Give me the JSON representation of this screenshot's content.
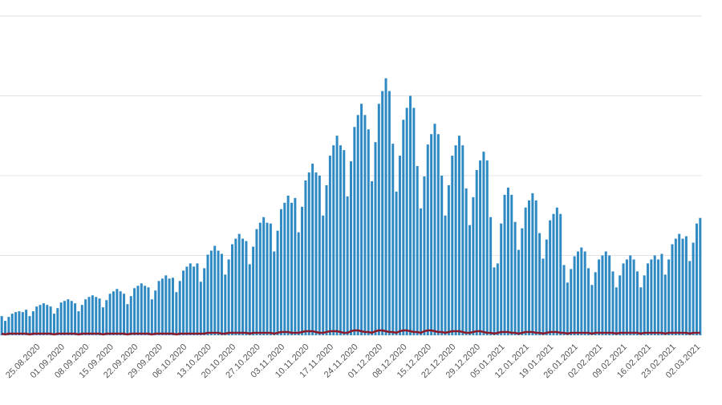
{
  "chart_data": {
    "type": "bar",
    "categories": [
      null,
      null,
      null,
      null,
      null,
      null,
      null,
      null,
      null,
      "25.08.2020",
      null,
      null,
      null,
      null,
      null,
      null,
      "01.09.2020",
      null,
      null,
      null,
      null,
      null,
      null,
      "08.09.2020",
      null,
      null,
      null,
      null,
      null,
      null,
      "15.09.2020",
      null,
      null,
      null,
      null,
      null,
      null,
      "22.09.2020",
      null,
      null,
      null,
      null,
      null,
      null,
      "29.09.2020",
      null,
      null,
      null,
      null,
      null,
      null,
      "06.10.2020",
      null,
      null,
      null,
      null,
      null,
      null,
      "13.10.2020",
      null,
      null,
      null,
      null,
      null,
      null,
      "20.10.2020",
      null,
      null,
      null,
      null,
      null,
      null,
      "27.10.2020",
      null,
      null,
      null,
      null,
      null,
      null,
      "03.11.2020",
      null,
      null,
      null,
      null,
      null,
      null,
      "10.11.2020",
      null,
      null,
      null,
      null,
      null,
      null,
      "17.11.2020",
      null,
      null,
      null,
      null,
      null,
      null,
      "24.11.2020",
      null,
      null,
      null,
      null,
      null,
      null,
      "01.12.2020",
      null,
      null,
      null,
      null,
      null,
      null,
      "08.12.2020",
      null,
      null,
      null,
      null,
      null,
      null,
      "15.12.2020",
      null,
      null,
      null,
      null,
      null,
      null,
      "22.12.2020",
      null,
      null,
      null,
      null,
      null,
      null,
      "29.12.2020",
      null,
      null,
      null,
      null,
      null,
      null,
      "05.01.2021",
      null,
      null,
      null,
      null,
      null,
      null,
      "12.01.2021",
      null,
      null,
      null,
      null,
      null,
      null,
      "19.01.2021",
      null,
      null,
      null,
      null,
      null,
      null,
      "26.01.2021",
      null,
      null,
      null,
      null,
      null,
      null,
      "02.02.2021",
      null,
      null,
      null,
      null,
      null,
      null,
      "09.02.2021",
      null,
      null,
      null,
      null,
      null,
      null,
      "16.02.2021",
      null,
      null,
      null,
      null,
      null,
      null,
      "23.02.2021",
      null,
      null,
      null,
      null,
      null,
      null,
      "02.03.2021",
      null,
      null
    ],
    "series": [
      {
        "type": "bar",
        "color": "#2f8ac4",
        "values": [
          0.24,
          0.18,
          0.23,
          0.27,
          0.29,
          0.3,
          0.29,
          0.32,
          0.24,
          0.3,
          0.36,
          0.38,
          0.4,
          0.38,
          0.36,
          0.27,
          0.34,
          0.41,
          0.43,
          0.45,
          0.43,
          0.4,
          0.3,
          0.38,
          0.45,
          0.48,
          0.5,
          0.48,
          0.46,
          0.35,
          0.44,
          0.52,
          0.55,
          0.58,
          0.55,
          0.52,
          0.39,
          0.49,
          0.59,
          0.62,
          0.65,
          0.62,
          0.6,
          0.45,
          0.56,
          0.68,
          0.71,
          0.75,
          0.71,
          0.72,
          0.54,
          0.68,
          0.81,
          0.86,
          0.9,
          0.86,
          0.9,
          0.67,
          0.84,
          1.01,
          1.06,
          1.12,
          1.06,
          1.02,
          0.76,
          0.95,
          1.14,
          1.21,
          1.27,
          1.21,
          1.18,
          0.89,
          1.11,
          1.33,
          1.41,
          1.48,
          1.41,
          1.4,
          1.05,
          1.31,
          1.58,
          1.66,
          1.75,
          1.66,
          1.72,
          1.29,
          1.61,
          1.94,
          2.04,
          2.15,
          2.04,
          2.0,
          1.5,
          1.88,
          2.25,
          2.38,
          2.5,
          2.38,
          2.32,
          1.74,
          2.18,
          2.61,
          2.76,
          2.9,
          2.76,
          2.58,
          1.93,
          2.42,
          2.9,
          3.06,
          3.22,
          3.06,
          2.4,
          1.8,
          2.25,
          2.7,
          2.85,
          3.0,
          2.85,
          2.12,
          1.59,
          1.99,
          2.39,
          2.52,
          2.65,
          2.52,
          2.0,
          1.5,
          1.88,
          2.25,
          2.38,
          2.5,
          2.38,
          1.84,
          1.38,
          1.73,
          2.07,
          2.19,
          2.3,
          2.19,
          1.48,
          0.85,
          0.9,
          1.4,
          1.76,
          1.85,
          1.76,
          1.42,
          1.07,
          1.34,
          1.6,
          1.69,
          1.78,
          1.69,
          1.28,
          0.96,
          1.2,
          1.44,
          1.52,
          1.6,
          1.52,
          0.88,
          0.66,
          0.83,
          0.99,
          1.05,
          1.1,
          1.05,
          0.84,
          0.63,
          0.79,
          0.95,
          1.0,
          1.05,
          1.0,
          0.8,
          0.6,
          0.75,
          0.9,
          0.95,
          1.0,
          0.95,
          0.8,
          0.6,
          0.75,
          0.9,
          0.95,
          1.0,
          0.95,
          1.02,
          0.76,
          0.95,
          1.14,
          1.21,
          1.27,
          1.21,
          1.24,
          0.93,
          1.16,
          1.4,
          1.47
        ]
      },
      {
        "type": "line",
        "color": "#8b1a2a",
        "values": [
          0.02,
          0.01,
          0.02,
          0.02,
          0.02,
          0.02,
          0.02,
          0.02,
          0.01,
          0.02,
          0.02,
          0.02,
          0.02,
          0.02,
          0.02,
          0.01,
          0.02,
          0.02,
          0.02,
          0.02,
          0.02,
          0.02,
          0.01,
          0.02,
          0.02,
          0.02,
          0.02,
          0.02,
          0.02,
          0.01,
          0.02,
          0.02,
          0.02,
          0.02,
          0.02,
          0.02,
          0.01,
          0.02,
          0.02,
          0.02,
          0.02,
          0.02,
          0.02,
          0.01,
          0.02,
          0.02,
          0.02,
          0.02,
          0.02,
          0.02,
          0.01,
          0.02,
          0.02,
          0.02,
          0.02,
          0.02,
          0.02,
          0.02,
          0.02,
          0.03,
          0.03,
          0.03,
          0.03,
          0.02,
          0.02,
          0.03,
          0.03,
          0.03,
          0.03,
          0.03,
          0.03,
          0.02,
          0.03,
          0.03,
          0.03,
          0.03,
          0.03,
          0.03,
          0.02,
          0.03,
          0.04,
          0.04,
          0.04,
          0.03,
          0.03,
          0.03,
          0.04,
          0.05,
          0.05,
          0.05,
          0.04,
          0.03,
          0.03,
          0.04,
          0.05,
          0.05,
          0.05,
          0.04,
          0.03,
          0.03,
          0.05,
          0.06,
          0.06,
          0.05,
          0.04,
          0.04,
          0.03,
          0.05,
          0.06,
          0.06,
          0.05,
          0.04,
          0.04,
          0.03,
          0.05,
          0.06,
          0.06,
          0.05,
          0.04,
          0.04,
          0.03,
          0.05,
          0.06,
          0.06,
          0.05,
          0.04,
          0.04,
          0.03,
          0.04,
          0.05,
          0.05,
          0.05,
          0.04,
          0.03,
          0.03,
          0.04,
          0.05,
          0.05,
          0.04,
          0.03,
          0.03,
          0.02,
          0.03,
          0.04,
          0.04,
          0.04,
          0.03,
          0.03,
          0.02,
          0.03,
          0.04,
          0.04,
          0.04,
          0.03,
          0.03,
          0.02,
          0.03,
          0.04,
          0.04,
          0.04,
          0.03,
          0.03,
          0.02,
          0.03,
          0.03,
          0.03,
          0.03,
          0.03,
          0.03,
          0.02,
          0.03,
          0.03,
          0.03,
          0.03,
          0.03,
          0.03,
          0.02,
          0.03,
          0.03,
          0.03,
          0.03,
          0.03,
          0.03,
          0.02,
          0.03,
          0.03,
          0.03,
          0.03,
          0.03,
          0.03,
          0.02,
          0.03,
          0.03,
          0.03,
          0.03,
          0.03,
          0.03,
          0.02,
          0.03,
          0.03,
          0.03
        ]
      }
    ],
    "ylim": [
      0,
      4
    ],
    "yticks": [
      0,
      1,
      2,
      3,
      4
    ],
    "grid": true
  }
}
